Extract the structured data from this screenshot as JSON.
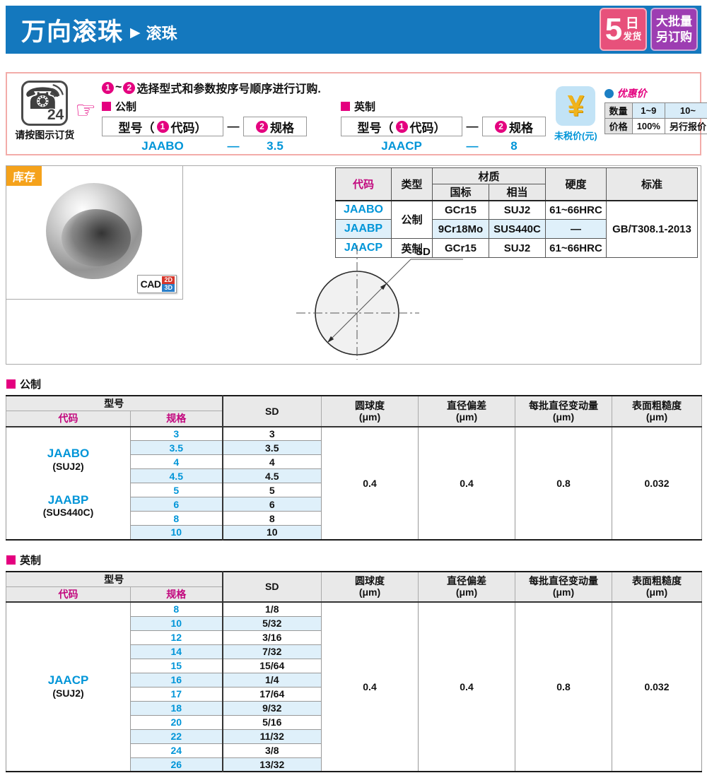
{
  "header": {
    "title": "万向滚珠",
    "arrow": "▶",
    "subtitle": "滚珠",
    "badge_delivery": {
      "big": "5",
      "top": "日",
      "bottom": "发货"
    },
    "badge_bulk": {
      "line1": "大批量",
      "line2": "另订购"
    }
  },
  "order": {
    "phone": {
      "glyph": "☎",
      "number": "24",
      "caption": "请按图示订货"
    },
    "hand": "☞",
    "steps": {
      "one": "1",
      "two": "2",
      "tilde": "~"
    },
    "instruction": "选择型式和参数按序号顺序进行订购.",
    "metric": {
      "label": "公制",
      "model_prefix": "型号（",
      "code_suffix": "代码）",
      "spec_suffix": "规格",
      "dash": "—",
      "example_code": "JAABO",
      "example_dash": "—",
      "example_spec": "3.5"
    },
    "inch": {
      "label": "英制",
      "model_prefix": "型号（",
      "code_suffix": "代码）",
      "spec_suffix": "规格",
      "dash": "—",
      "example_code": "JAACP",
      "example_dash": "—",
      "example_spec": "8"
    },
    "price": {
      "yen": "¥",
      "caption": "未税价(元)",
      "discount": "优惠价",
      "qty_label": "数量",
      "qty1": "1~9",
      "qty2": "10~",
      "price_label": "价格",
      "p1": "100%",
      "p2": "另行报价"
    }
  },
  "stock": {
    "badge": "库存",
    "cad": "CAD",
    "cad2d": "2D",
    "cad3d": "3D"
  },
  "material_table": {
    "h_code": "代码",
    "h_type": "类型",
    "h_material": "材质",
    "h_gb": "国标",
    "h_equiv": "相当",
    "h_hardness": "硬度",
    "h_standard": "标准",
    "type_metric": "公制",
    "type_inch": "英制",
    "standard": "GB/T308.1-2013",
    "rows": [
      {
        "code": "JAABO",
        "gb": "GCr15",
        "equiv": "SUJ2",
        "hardness": "61~66HRC"
      },
      {
        "code": "JAABP",
        "gb": "9Cr18Mo",
        "equiv": "SUS440C",
        "hardness": "—"
      },
      {
        "code": "JAACP",
        "gb": "GCr15",
        "equiv": "SUJ2",
        "hardness": "61~66HRC"
      }
    ]
  },
  "diagram": {
    "label": "SD"
  },
  "spec_headers": {
    "model": "型号",
    "code": "代码",
    "spec": "规格",
    "sd": "SD",
    "sph": "圆球度",
    "dev": "直径偏差",
    "batch": "每批直径变动量",
    "rough": "表面粗糙度",
    "unit": "(μm)"
  },
  "metric_table": {
    "label": "公制",
    "codes": [
      {
        "name": "JAABO",
        "mat": "(SUJ2)"
      },
      {
        "name": "JAABP",
        "mat": "(SUS440C)"
      }
    ],
    "rows": [
      {
        "spec": "3",
        "sd": "3"
      },
      {
        "spec": "3.5",
        "sd": "3.5"
      },
      {
        "spec": "4",
        "sd": "4"
      },
      {
        "spec": "4.5",
        "sd": "4.5"
      },
      {
        "spec": "5",
        "sd": "5"
      },
      {
        "spec": "6",
        "sd": "6"
      },
      {
        "spec": "8",
        "sd": "8"
      },
      {
        "spec": "10",
        "sd": "10"
      }
    ],
    "values": [
      "0.4",
      "0.4",
      "0.8",
      "0.032"
    ]
  },
  "inch_table": {
    "label": "英制",
    "codes": [
      {
        "name": "JAACP",
        "mat": "(SUJ2)"
      }
    ],
    "rows": [
      {
        "spec": "8",
        "sd": "1/8"
      },
      {
        "spec": "10",
        "sd": "5/32"
      },
      {
        "spec": "12",
        "sd": "3/16"
      },
      {
        "spec": "14",
        "sd": "7/32"
      },
      {
        "spec": "15",
        "sd": "15/64"
      },
      {
        "spec": "16",
        "sd": "1/4"
      },
      {
        "spec": "17",
        "sd": "17/64"
      },
      {
        "spec": "18",
        "sd": "9/32"
      },
      {
        "spec": "20",
        "sd": "5/16"
      },
      {
        "spec": "22",
        "sd": "11/32"
      },
      {
        "spec": "24",
        "sd": "3/8"
      },
      {
        "spec": "26",
        "sd": "13/32"
      }
    ],
    "values": [
      "0.4",
      "0.4",
      "0.8",
      "0.032"
    ]
  }
}
